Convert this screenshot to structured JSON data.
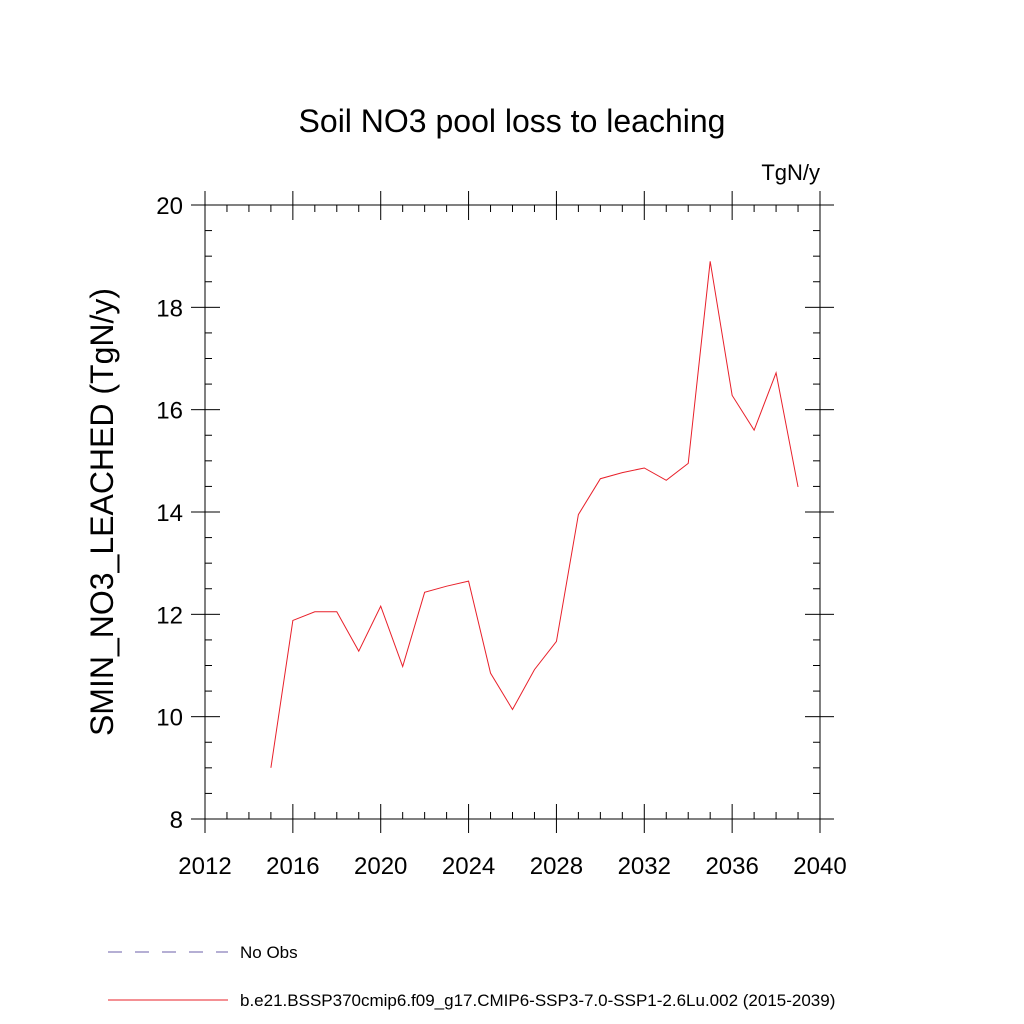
{
  "chart_data": {
    "type": "line",
    "title": "Soil NO3 pool loss to leaching",
    "units_label": "TgN/y",
    "ylabel": "SMIN_NO3_LEACHED  (TgN/y)",
    "xlabel": "",
    "xlim": [
      2012,
      2040
    ],
    "ylim": [
      8,
      20
    ],
    "x_ticks": [
      2012,
      2016,
      2020,
      2024,
      2028,
      2032,
      2036,
      2040
    ],
    "y_ticks": [
      8,
      10,
      12,
      14,
      16,
      18,
      20
    ],
    "grid": false,
    "legend_position": "bottom",
    "legend": [
      {
        "label": "No Obs",
        "style": "dashed",
        "color": "#6b5fa8"
      },
      {
        "label": "b.e21.BSSP370cmip6.f09_g17.CMIP6-SSP3-7.0-SSP1-2.6Lu.002 (2015-2039)",
        "style": "solid",
        "color": "#e8202a"
      }
    ],
    "series": [
      {
        "color": "#e8202a",
        "x": [
          2015,
          2016,
          2017,
          2018,
          2019,
          2020,
          2021,
          2022,
          2023,
          2024,
          2025,
          2026,
          2027,
          2028,
          2029,
          2030,
          2031,
          2032,
          2033,
          2034,
          2035,
          2036,
          2037,
          2038,
          2039
        ],
        "y": [
          9.0,
          11.88,
          12.05,
          12.05,
          11.28,
          12.16,
          10.98,
          12.43,
          12.55,
          12.65,
          10.85,
          10.14,
          10.92,
          11.47,
          13.95,
          14.65,
          14.77,
          14.86,
          14.62,
          14.95,
          18.9,
          16.28,
          15.6,
          16.72,
          14.49
        ]
      }
    ]
  }
}
